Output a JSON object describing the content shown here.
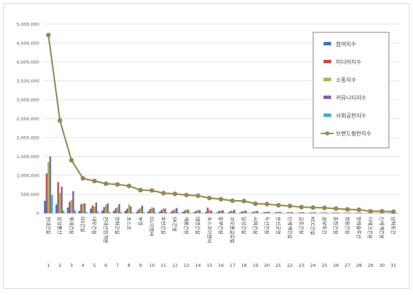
{
  "chart_data": {
    "type": "bar",
    "title": "",
    "xlabel": "",
    "ylabel": "",
    "ylim": [
      0,
      5000000
    ],
    "y_ticks": [
      "0",
      "500,000",
      "1,000,000",
      "1,500,000",
      "2,000,000",
      "2,500,000",
      "3,000,000",
      "3,500,000",
      "4,000,000",
      "4,500,000",
      "5,000,000"
    ],
    "grid": "horizontal",
    "legend_position": "right",
    "rank_numbers": [
      "1",
      "2",
      "3",
      "4",
      "5",
      "6",
      "7",
      "8",
      "9",
      "10",
      "11",
      "12",
      "13",
      "14",
      "15",
      "16",
      "17",
      "18",
      "19",
      "20",
      "21",
      "22",
      "23",
      "24",
      "25",
      "26",
      "27",
      "28",
      "29",
      "30",
      "31"
    ],
    "categories": [
      "현대건설",
      "삼성물산",
      "롯데건설",
      "GS건설",
      "대우건설",
      "현대산업개발",
      "한화건설",
      "포스코",
      "부영",
      "DL이앤씨",
      "호반건설",
      "SK건설",
      "계룡건설",
      "태영건설",
      "포스코이앤씨",
      "동부건설",
      "코오롱글로벌",
      "일성건설",
      "서희건설",
      "두산건설",
      "한신공영",
      "신세계건설",
      "금호건설",
      "KCC건설",
      "삼부토건",
      "동원건설",
      "쌍용건설",
      "한화솔루션",
      "이테크건설",
      "신세계건설",
      "남화토건"
    ],
    "series": [
      {
        "name": "참여지수",
        "type": "bar",
        "color": "#4472c4",
        "values": [
          330000,
          230000,
          150000,
          60000,
          120000,
          70000,
          60000,
          60000,
          40000,
          50000,
          40000,
          40000,
          35000,
          30000,
          30000,
          25000,
          25000,
          20000,
          15000,
          15000,
          12000,
          10000,
          10000,
          8000,
          8000,
          6000,
          6000,
          5000,
          4000,
          4000,
          3000
        ]
      },
      {
        "name": "미디어지수",
        "type": "bar",
        "color": "#c0504d",
        "values": [
          1050000,
          820000,
          300000,
          240000,
          200000,
          160000,
          130000,
          120000,
          100000,
          110000,
          90000,
          80000,
          70000,
          60000,
          150000,
          60000,
          60000,
          50000,
          40000,
          30000,
          30000,
          25000,
          20000,
          20000,
          18000,
          15000,
          15000,
          12000,
          10000,
          10000,
          8000
        ]
      },
      {
        "name": "소통지수",
        "type": "bar",
        "color": "#9bbb59",
        "values": [
          1350000,
          530000,
          350000,
          250000,
          170000,
          220000,
          160000,
          230000,
          140000,
          160000,
          130000,
          100000,
          100000,
          90000,
          80000,
          70000,
          60000,
          60000,
          50000,
          40000,
          40000,
          30000,
          30000,
          25000,
          20000,
          20000,
          15000,
          15000,
          12000,
          12000,
          10000
        ]
      },
      {
        "name": "커뮤니티지수",
        "type": "bar",
        "color": "#8064a2",
        "values": [
          1500000,
          700000,
          580000,
          260000,
          280000,
          260000,
          240000,
          180000,
          200000,
          140000,
          120000,
          140000,
          90000,
          80000,
          70000,
          80000,
          90000,
          70000,
          60000,
          40000,
          35000,
          30000,
          25000,
          25000,
          20000,
          18000,
          15000,
          15000,
          10000,
          10000,
          8000
        ]
      },
      {
        "name": "사회공헌지수",
        "type": "bar",
        "color": "#4bacc6",
        "values": [
          480000,
          70000,
          80000,
          30000,
          40000,
          30000,
          30000,
          20000,
          20000,
          20000,
          15000,
          15000,
          15000,
          10000,
          10000,
          10000,
          8000,
          8000,
          6000,
          5000,
          5000,
          5000,
          4000,
          4000,
          3000,
          3000,
          3000,
          2000,
          2000,
          2000,
          2000
        ]
      },
      {
        "name": "브랜드평판지수",
        "type": "line",
        "color": "#948a54",
        "values": [
          4710000,
          2450000,
          1400000,
          920000,
          850000,
          780000,
          760000,
          720000,
          610000,
          600000,
          530000,
          510000,
          480000,
          460000,
          400000,
          370000,
          330000,
          320000,
          250000,
          240000,
          210000,
          190000,
          160000,
          150000,
          140000,
          120000,
          100000,
          90000,
          50000,
          50000,
          40000
        ]
      }
    ]
  }
}
